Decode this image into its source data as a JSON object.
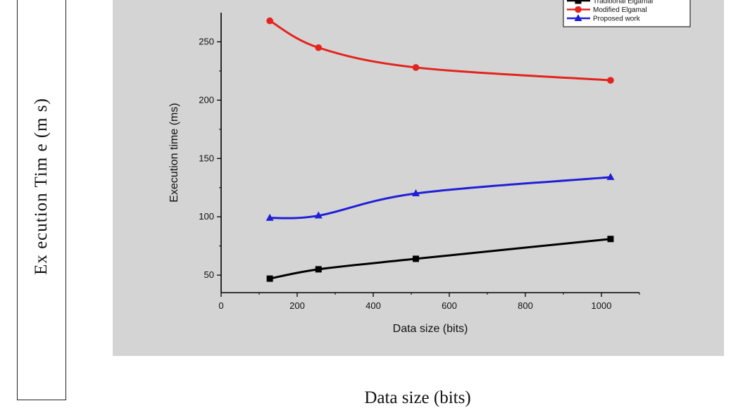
{
  "figure": {
    "outer_ylabel": "Ex ecution Tim e (m s)",
    "outer_xlabel": "Data size (bits)",
    "panel_background": "#d4d4d4"
  },
  "chart_data": {
    "type": "line",
    "title": "",
    "xlabel": "Data size (bits)",
    "ylabel": "Execution time (ms)",
    "xlim": [
      0,
      1100
    ],
    "ylim": [
      35,
      275
    ],
    "xticks": [
      0,
      200,
      400,
      600,
      800,
      1000
    ],
    "yticks": [
      50,
      100,
      150,
      200,
      250
    ],
    "legend_position": "top-right",
    "grid": false,
    "x": [
      128,
      256,
      512,
      1024
    ],
    "series": [
      {
        "name": "Traditional Elgamal",
        "values": [
          47,
          55,
          64,
          81
        ],
        "color": "#000000",
        "marker": "square"
      },
      {
        "name": "Modified Elgamal",
        "values": [
          268,
          245,
          228,
          217
        ],
        "color": "#e3231c",
        "marker": "circle"
      },
      {
        "name": "Proposed work",
        "values": [
          99,
          101,
          120,
          134
        ],
        "color": "#1f1fd8",
        "marker": "triangle"
      }
    ]
  }
}
